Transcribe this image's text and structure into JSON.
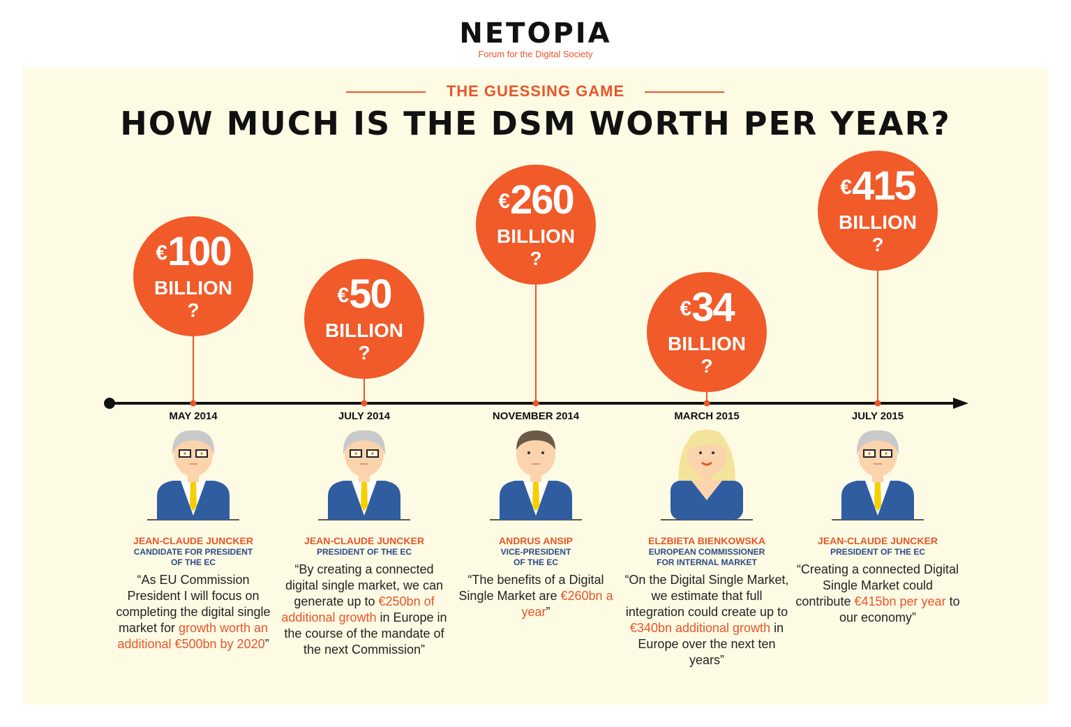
{
  "brand": {
    "name": "NETOPIA",
    "tagline": "Forum for the Digital Society"
  },
  "kicker": "THE GUESSING GAME",
  "headline": "HOW MUCH IS THE DSM WORTH PER YEAR?",
  "colors": {
    "accent": "#f15a29",
    "role": "#2b4a8b",
    "panel": "#fdfbe4"
  },
  "events": [
    {
      "currency": "€",
      "amount": "100",
      "unit": "BILLION",
      "question": "?",
      "date": "MAY 2014",
      "name": "JEAN-CLAUDE JUNCKER",
      "role1": "CANDIDATE FOR PRESIDENT",
      "role2": "OF THE EC",
      "quote_pre": "“As EU Commission President I will focus on completing the digital single market for ",
      "quote_hl": "growth worth an additional €500bn by 2020",
      "quote_post": "”",
      "avatar": "man-grey-glasses-icon"
    },
    {
      "currency": "€",
      "amount": "50",
      "unit": "BILLION",
      "question": "?",
      "date": "JULY 2014",
      "name": "JEAN-CLAUDE JUNCKER",
      "role1": "PRESIDENT OF THE EC",
      "role2": "",
      "quote_pre": "“By creating a connected digital single market, we can generate up to ",
      "quote_hl": "€250bn of additional growth",
      "quote_post": " in Europe in the course of the mandate of the next Commission”",
      "avatar": "man-grey-glasses-icon"
    },
    {
      "currency": "€",
      "amount": "260",
      "unit": "BILLION",
      "question": "?",
      "date": "NOVEMBER 2014",
      "name": "ANDRUS ANSIP",
      "role1": "VICE-PRESIDENT",
      "role2": "OF THE EC",
      "quote_pre": "“The benefits of a Digital Single Market are ",
      "quote_hl": "€260bn a year",
      "quote_post": "”",
      "avatar": "man-brown-hair-icon"
    },
    {
      "currency": "€",
      "amount": "34",
      "unit": "BILLION",
      "question": "?",
      "date": "MARCH 2015",
      "name": "ELZBIETA BIENKOWSKA",
      "role1": "EUROPEAN COMMISSIONER",
      "role2": "FOR INTERNAL MARKET",
      "quote_pre": "“On the Digital Single Market, we estimate that full integration could create up to ",
      "quote_hl": "€340bn  additional growth",
      "quote_post": " in Europe over the next ten years”",
      "avatar": "woman-blonde-icon"
    },
    {
      "currency": "€",
      "amount": "415",
      "unit": "BILLION",
      "question": "?",
      "date": "JULY 2015",
      "name": "JEAN-CLAUDE JUNCKER",
      "role1": "PRESIDENT OF THE EC",
      "role2": "",
      "quote_pre": "“Creating a connected Digital Single Market could contribute ",
      "quote_hl": "€415bn per year",
      "quote_post": " to our economy”",
      "avatar": "man-grey-glasses-icon"
    }
  ]
}
